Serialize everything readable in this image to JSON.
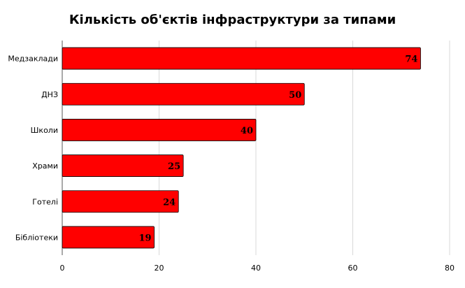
{
  "chart_data": {
    "type": "bar",
    "orientation": "horizontal",
    "title": "Кількість об'єктів інфраструктури за типами",
    "categories": [
      "Медзаклади",
      "ДНЗ",
      "Школи",
      "Храми",
      "Готелі",
      "Бібліотеки"
    ],
    "values": [
      74,
      50,
      40,
      25,
      24,
      19
    ],
    "data_labels": [
      "74",
      "50",
      "40",
      "25",
      "24",
      "19"
    ],
    "xlim": [
      0,
      80
    ],
    "x_ticks": [
      0,
      20,
      40,
      60,
      80
    ],
    "x_tick_labels": [
      "0",
      "20",
      "40",
      "60",
      "80"
    ],
    "xlabel": "",
    "ylabel": "",
    "grid": true,
    "legend": "none",
    "bar_color": "#ff0000",
    "bar_edge_color": "#000000"
  }
}
